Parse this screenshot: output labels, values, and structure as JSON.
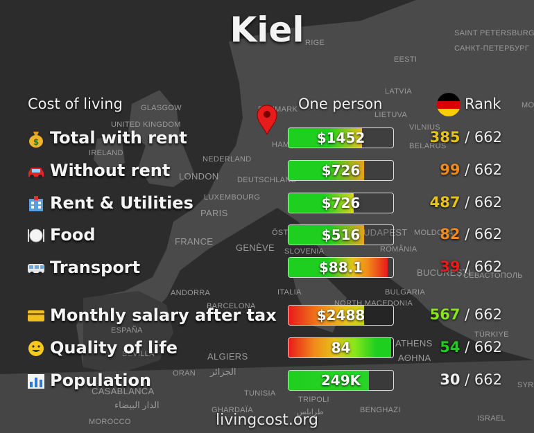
{
  "title": "Kiel",
  "header": {
    "left": "Cost of living",
    "middle": "One person",
    "right": "Rank"
  },
  "footer": "livingcost.org",
  "colors": {
    "green": "#1fcf1f",
    "yellow": "#e6c21a",
    "orange": "#f08a1a",
    "red": "#e81b1b",
    "lightgreen": "#86e61a"
  },
  "map_labels": [
    "SAINT PETERSBURG",
    "САНКТ-ПЕТЕРБУРГ",
    "EESTI",
    "RIGE",
    "LATVIA",
    "LIETUVA",
    "VILNIUS",
    "BELARUS",
    "GLASGOW",
    "UNITED KINGDOM",
    "IRELAND",
    "DANMARK",
    "HAMBURG",
    "NEDERLAND",
    "LONDON",
    "DEUTSCHLAND",
    "LUXEMBOURG",
    "PARIS",
    "ÖSTERREICH",
    "BUDAPEST",
    "MOLDOVA",
    "FRANCE",
    "GENÈVE",
    "SLOVENIA",
    "ROMÂNIA",
    "BUCUREȘTI",
    "СЕВАСТОПОЛЬ",
    "ANDORRA",
    "ITALIA",
    "BULGARIA",
    "BARCELONA",
    "NORTH MACEDONIA",
    "ESPAÑA",
    "TÜRKIYE",
    "SEVILLA",
    "ATHENS",
    "ΑΘΗΝΑ",
    "ALGIERS",
    "الجزائر",
    "ORAN",
    "TUNISIA",
    "CASABLANCA",
    "الدار البيضاء",
    "TRIPOLI",
    "طرابلس",
    "GHARDAÏA",
    "BENGHAZI",
    "MOROCCO",
    "ISRAEL",
    "SYR",
    "MO"
  ],
  "chart_data": {
    "type": "table",
    "rows": [
      {
        "icon": "money-bag-icon",
        "label": "Total with rent",
        "value": "$1452",
        "rank": 385,
        "total": "662",
        "rank_color": "#e6c21a"
      },
      {
        "icon": "car-icon",
        "label": "Without rent",
        "value": "$726",
        "rank": 99,
        "total": "662",
        "rank_color": "#f08a1a"
      },
      {
        "icon": "building-icon",
        "label": "Rent & Utilities",
        "value": "$726",
        "rank": 487,
        "total": "662",
        "rank_color": "#e6c21a"
      },
      {
        "icon": "plate-icon",
        "label": "Food",
        "value": "$516",
        "rank": 82,
        "total": "662",
        "rank_color": "#f08a1a"
      },
      {
        "icon": "minibus-icon",
        "label": "Transport",
        "value": "$88.1",
        "rank": 39,
        "total": "662",
        "rank_color": "#e81b1b"
      },
      {
        "icon": "credit-card-icon",
        "label": "Monthly salary after tax",
        "value": "$2488",
        "rank": 567,
        "total": "662",
        "rank_color": "#86e61a"
      },
      {
        "icon": "smiley-icon",
        "label": "Quality of life",
        "value": "84",
        "rank": 54,
        "total": "662",
        "rank_color": "#1fcf1f"
      },
      {
        "icon": "chart-icon",
        "label": "Population",
        "value": "249K",
        "rank": 30,
        "total": "662",
        "rank_color": "#f0f0f0"
      }
    ]
  }
}
